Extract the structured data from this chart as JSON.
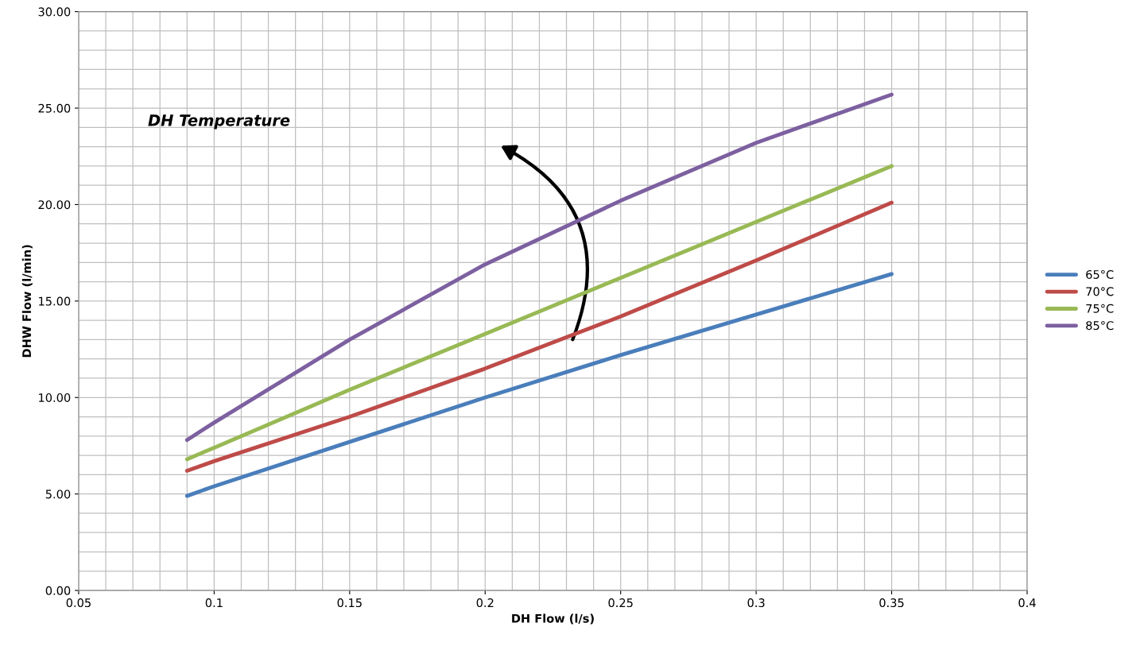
{
  "chart_data": {
    "type": "line",
    "xlabel": "DH Flow (l/s)",
    "ylabel": "DHW Flow (l/min)",
    "x": [
      0.09,
      0.1,
      0.15,
      0.2,
      0.25,
      0.3,
      0.35
    ],
    "series": [
      {
        "name": "65°C",
        "color": "#4a7ebb",
        "values": [
          4.9,
          5.4,
          7.7,
          10.0,
          12.2,
          14.3,
          16.4
        ]
      },
      {
        "name": "70°C",
        "color": "#be4b48",
        "values": [
          6.2,
          6.7,
          9.0,
          11.5,
          14.2,
          17.1,
          20.1
        ]
      },
      {
        "name": "75°C",
        "color": "#98b954",
        "values": [
          6.8,
          7.4,
          10.4,
          13.3,
          16.2,
          19.1,
          22.0
        ]
      },
      {
        "name": "85°C",
        "color": "#7d60a0",
        "values": [
          7.8,
          8.7,
          13.0,
          16.9,
          20.2,
          23.2,
          25.7
        ]
      }
    ],
    "xlim": [
      0.05,
      0.4
    ],
    "xticks": [
      0.05,
      0.1,
      0.15,
      0.2,
      0.25,
      0.3,
      0.35,
      0.4
    ],
    "ylim": [
      0,
      30
    ],
    "yticks": [
      {
        "value": 0,
        "label": "0.00"
      },
      {
        "value": 5,
        "label": "5.00"
      },
      {
        "value": 10,
        "label": "10.00"
      },
      {
        "value": 15,
        "label": "15.00"
      },
      {
        "value": 20,
        "label": "20.00"
      },
      {
        "value": 25,
        "label": "25.00"
      },
      {
        "value": 30,
        "label": "30.00"
      }
    ],
    "annotations": [
      "DH Temperature"
    ],
    "grid": true,
    "legend": "right",
    "marker": "none",
    "line_style": "solid"
  }
}
